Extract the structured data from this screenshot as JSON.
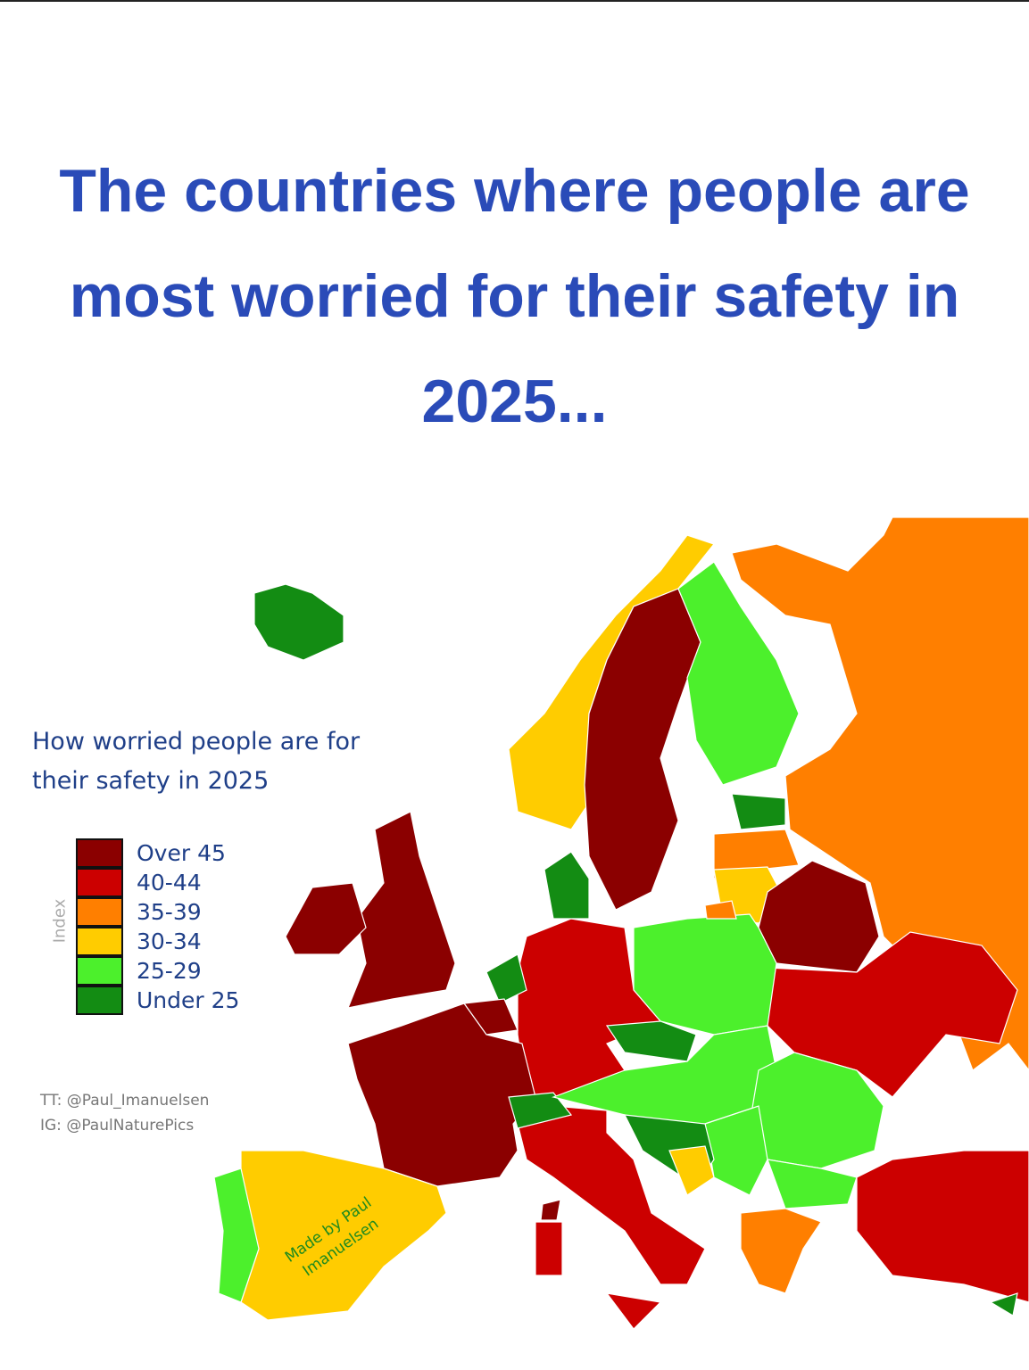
{
  "title": "The countries where people are most worried for their safety in 2025...",
  "legend": {
    "title": "How worried people are for their safety in 2025",
    "axis_label": "Index",
    "items": [
      {
        "label": "Over 45",
        "color": "#8b0000"
      },
      {
        "label": "40-44",
        "color": "#cc0000"
      },
      {
        "label": "35-39",
        "color": "#ff7f00"
      },
      {
        "label": "30-34",
        "color": "#ffcc00"
      },
      {
        "label": "25-29",
        "color": "#4cf02c"
      },
      {
        "label": "Under 25",
        "color": "#138c13"
      }
    ]
  },
  "credits": [
    "TT: @Paul_Imanuelsen",
    "IG: @PaulNaturePics"
  ],
  "watermark": "Made by Paul Imanuelsen"
}
